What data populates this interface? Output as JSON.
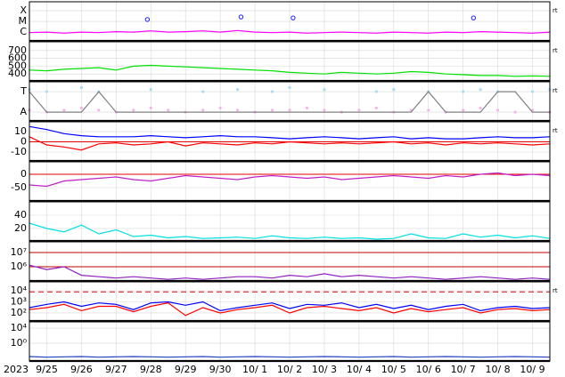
{
  "chart_data": [
    {
      "type": "line",
      "log": true,
      "corner_label": "rt",
      "x": [
        0,
        0.5,
        1,
        1.5,
        2,
        2.5,
        3,
        3.5,
        4,
        4.5,
        5,
        5.5,
        6,
        6.5,
        7,
        7.5,
        8,
        8.5,
        9,
        9.5,
        10,
        10.5,
        11,
        11.5,
        12,
        12.5,
        13,
        13.5,
        14,
        14.5,
        15
      ],
      "xlim": [
        0,
        15
      ],
      "ylim": [
        1.5e-07,
        0.00068
      ],
      "yticks": [
        {
          "value": 1e-06,
          "label": "C"
        },
        {
          "value": 1e-05,
          "label": "M"
        },
        {
          "value": 0.0001,
          "label": "X"
        }
      ],
      "series": [
        {
          "color": "#ff00ff",
          "values": [
            8.9e-07,
            1e-06,
            7.9e-07,
            1e-06,
            8.9e-07,
            1.1e-06,
            1e-06,
            1.3e-06,
            1e-06,
            1.1e-06,
            1.3e-06,
            1e-06,
            1.4e-06,
            1e-06,
            8.9e-07,
            1e-06,
            7.9e-07,
            8.9e-07,
            1e-06,
            8.9e-07,
            7.9e-07,
            1e-06,
            8.9e-07,
            7.9e-07,
            1e-06,
            8.9e-07,
            1.1e-06,
            1e-06,
            8.9e-07,
            7.9e-07,
            1e-06
          ]
        },
        {
          "color": "#2020ff",
          "marker": "circle",
          "x": [
            3.4,
            6.1,
            7.6,
            12.8
          ],
          "values": [
            1.5e-05,
            2.6e-05,
            2.1e-05,
            2.1e-05
          ]
        }
      ]
    },
    {
      "type": "line",
      "corner_label": "rt",
      "x": [
        0,
        0.5,
        1,
        1.5,
        2,
        2.5,
        3,
        3.5,
        4,
        4.5,
        5,
        5.5,
        6,
        6.5,
        7,
        7.5,
        8,
        8.5,
        9,
        9.5,
        10,
        10.5,
        11,
        11.5,
        12,
        12.5,
        13,
        13.5,
        14,
        14.5,
        15
      ],
      "xlim": [
        0,
        15
      ],
      "ylim": [
        311,
        811
      ],
      "yticks": [
        400,
        500,
        600,
        700
      ],
      "series": [
        {
          "color": "#00e000",
          "values": [
            450,
            440,
            460,
            470,
            480,
            450,
            500,
            510,
            500,
            490,
            480,
            470,
            460,
            450,
            440,
            420,
            410,
            400,
            420,
            410,
            400,
            410,
            430,
            420,
            400,
            390,
            380,
            380,
            370,
            375,
            370
          ]
        }
      ]
    },
    {
      "type": "line",
      "corner_label": "rt",
      "x": [
        0,
        0.5,
        1,
        1.5,
        2,
        2.5,
        3,
        3.5,
        4,
        4.5,
        5,
        5.5,
        6,
        6.5,
        7,
        7.5,
        8,
        8.5,
        9,
        9.5,
        10,
        10.5,
        11,
        11.5,
        12,
        12.5,
        13,
        13.5,
        14,
        14.5,
        15
      ],
      "xlim": [
        0,
        15
      ],
      "ylim": [
        -0.43,
        1.48
      ],
      "yticks": [
        {
          "value": 0,
          "label": "A"
        },
        {
          "value": 1,
          "label": "T"
        }
      ],
      "series": [
        {
          "color": "#a8dcf4",
          "marker": "dot",
          "values": [
            1.1,
            1.0,
            null,
            1.2,
            1.0,
            null,
            null,
            1.1,
            null,
            null,
            1.0,
            null,
            1.1,
            null,
            1.0,
            1.2,
            null,
            1.1,
            null,
            null,
            1.0,
            1.1,
            null,
            1.0,
            null,
            1.0,
            1.1,
            1.0,
            null,
            1.0,
            1.1
          ]
        },
        {
          "color": "#f4b4ec",
          "marker": "dot",
          "values": [
            0.1,
            0.0,
            0.1,
            0.2,
            0.1,
            0.0,
            0.1,
            0.2,
            0.1,
            0.0,
            0.1,
            0.2,
            0.1,
            0.0,
            0.1,
            0.1,
            0.2,
            0.1,
            0.0,
            0.1,
            0.2,
            0.0,
            0.1,
            0.1,
            0.0,
            0.1,
            0.2,
            0.1,
            0.0,
            0.1,
            0.0
          ]
        },
        {
          "color": "#808080",
          "values": [
            1,
            0,
            0,
            0,
            1,
            0,
            0,
            0,
            0,
            0,
            0,
            0,
            0,
            0,
            0,
            0,
            0,
            0,
            0,
            0,
            0,
            0,
            0,
            1,
            0,
            0,
            0,
            1,
            1,
            0,
            0
          ]
        }
      ]
    },
    {
      "type": "line",
      "corner_label": "rt",
      "x": [
        0,
        0.5,
        1,
        1.5,
        2,
        2.5,
        3,
        3.5,
        4,
        4.5,
        5,
        5.5,
        6,
        6.5,
        7,
        7.5,
        8,
        8.5,
        9,
        9.5,
        10,
        10.5,
        11,
        11.5,
        12,
        12.5,
        13,
        13.5,
        14,
        14.5,
        15
      ],
      "xlim": [
        0,
        15
      ],
      "ylim": [
        -18.7,
        19.6
      ],
      "yticks": [
        10,
        0,
        -10
      ],
      "hlines": [
        {
          "value": 0,
          "color": "#e00000"
        }
      ],
      "series": [
        {
          "color": "#0000ff",
          "values": [
            15,
            12,
            8,
            6,
            5,
            5,
            5,
            6,
            5,
            4,
            5,
            6,
            5,
            5,
            4,
            3,
            4,
            5,
            4,
            3,
            4,
            5,
            3,
            4,
            3,
            3,
            4,
            5,
            4,
            4,
            5
          ]
        },
        {
          "color": "#ff0000",
          "values": [
            5,
            -3,
            -5,
            -8,
            -2,
            -1,
            -3,
            -2,
            0,
            -4,
            -1,
            -2,
            -3,
            -1,
            -2,
            0,
            -1,
            -2,
            -1,
            -2,
            -1,
            0,
            -2,
            -1,
            -3,
            -1,
            -2,
            -1,
            -2,
            -3,
            -2
          ]
        }
      ]
    },
    {
      "type": "line",
      "x": [
        0,
        0.5,
        1,
        1.5,
        2,
        2.5,
        3,
        3.5,
        4,
        4.5,
        5,
        5.5,
        6,
        6.5,
        7,
        7.5,
        8,
        8.5,
        9,
        9.5,
        10,
        10.5,
        11,
        11.5,
        12,
        12.5,
        13,
        13.5,
        14,
        14.5,
        15
      ],
      "xlim": [
        0,
        15
      ],
      "ylim": [
        -100,
        46.7
      ],
      "yticks": [
        0,
        -50
      ],
      "hlines": [
        {
          "value": 0,
          "color": "#e00000"
        }
      ],
      "series": [
        {
          "color": "#c020c8",
          "values": [
            -40,
            -45,
            -25,
            -20,
            -15,
            -10,
            -20,
            -25,
            -15,
            -5,
            -10,
            -15,
            -20,
            -10,
            -5,
            -10,
            -15,
            -10,
            -20,
            -15,
            -10,
            -5,
            -10,
            -15,
            -5,
            -10,
            0,
            5,
            -5,
            0,
            -5
          ]
        }
      ]
    },
    {
      "type": "line",
      "x": [
        0,
        0.5,
        1,
        1.5,
        2,
        2.5,
        3,
        3.5,
        4,
        4.5,
        5,
        5.5,
        6,
        6.5,
        7,
        7.5,
        8,
        8.5,
        9,
        9.5,
        10,
        10.5,
        11,
        11.5,
        12,
        12.5,
        13,
        13.5,
        14,
        14.5,
        15
      ],
      "xlim": [
        0,
        15
      ],
      "ylim": [
        1.3,
        60
      ],
      "yticks": [
        40,
        20
      ],
      "series": [
        {
          "color": "#00e0e0",
          "values": [
            28,
            20,
            15,
            25,
            12,
            18,
            8,
            10,
            6,
            8,
            5,
            6,
            7,
            5,
            9,
            6,
            5,
            7,
            5,
            6,
            4,
            5,
            12,
            6,
            5,
            12,
            7,
            10,
            6,
            9,
            5
          ]
        }
      ]
    },
    {
      "type": "line",
      "log": true,
      "x": [
        0,
        0.5,
        1,
        1.5,
        2,
        2.5,
        3,
        3.5,
        4,
        4.5,
        5,
        5.5,
        6,
        6.5,
        7,
        7.5,
        8,
        8.5,
        9,
        9.5,
        10,
        10.5,
        11,
        11.5,
        12,
        12.5,
        13,
        13.5,
        14,
        14.5,
        15
      ],
      "xlim": [
        0,
        15
      ],
      "ylim": [
        100000,
        56000000
      ],
      "yticks": [
        {
          "value": 10000000,
          "label": "10⁷"
        },
        {
          "value": 1000000,
          "label": "10⁶"
        }
      ],
      "hlines": [
        {
          "value": 10000000,
          "color": "#c00000"
        },
        {
          "value": 1000000,
          "color": "#c00000"
        }
      ],
      "series": [
        {
          "color": "#9020c0",
          "values": [
            1300000,
            630000,
            1000000,
            250000,
            200000,
            160000,
            200000,
            160000,
            130000,
            160000,
            130000,
            160000,
            200000,
            200000,
            160000,
            250000,
            200000,
            320000,
            200000,
            250000,
            200000,
            160000,
            200000,
            160000,
            130000,
            160000,
            200000,
            160000,
            130000,
            160000,
            130000
          ]
        }
      ]
    },
    {
      "type": "line",
      "log": true,
      "corner_label": "rt",
      "x": [
        0,
        0.5,
        1,
        1.5,
        2,
        2.5,
        3,
        3.5,
        4,
        4.5,
        5,
        5.5,
        6,
        6.5,
        7,
        7.5,
        8,
        8.5,
        9,
        9.5,
        10,
        10.5,
        11,
        11.5,
        12,
        12.5,
        13,
        13.5,
        14,
        14.5,
        15
      ],
      "xlim": [
        0,
        15
      ],
      "ylim": [
        19,
        63000
      ],
      "yticks": [
        {
          "value": 10000,
          "label": "10⁴"
        },
        {
          "value": 1000,
          "label": "10³"
        },
        {
          "value": 100,
          "label": "10²"
        }
      ],
      "hlines": [
        {
          "value": 8000,
          "color": "#e00000",
          "dashed": true
        }
      ],
      "series": [
        {
          "color": "#0000ff",
          "values": [
            300,
            600,
            1000,
            400,
            800,
            600,
            200,
            800,
            1000,
            500,
            1000,
            160,
            300,
            500,
            800,
            250,
            600,
            500,
            800,
            300,
            600,
            250,
            500,
            200,
            400,
            600,
            160,
            300,
            400,
            250,
            300
          ]
        },
        {
          "color": "#ff0000",
          "values": [
            200,
            300,
            600,
            160,
            400,
            400,
            130,
            400,
            800,
            60,
            300,
            100,
            200,
            300,
            500,
            100,
            300,
            400,
            250,
            160,
            300,
            100,
            250,
            130,
            200,
            300,
            100,
            200,
            250,
            160,
            200
          ]
        }
      ]
    },
    {
      "type": "line",
      "log": true,
      "year": "2023",
      "x": [
        0,
        0.5,
        1,
        1.5,
        2,
        2.5,
        3,
        3.5,
        4,
        4.5,
        5,
        5.5,
        6,
        6.5,
        7,
        7.5,
        8,
        8.5,
        9,
        9.5,
        10,
        10.5,
        11,
        11.5,
        12,
        12.5,
        13,
        13.5,
        14,
        14.5,
        15
      ],
      "xlim": [
        0,
        15
      ],
      "ylim": [
        2e-05,
        450000
      ],
      "yticks": [
        {
          "value": 10000,
          "label": "10⁴"
        },
        {
          "value": 1,
          "label": "10⁰"
        }
      ],
      "xticks": [
        {
          "value": 0.5,
          "label": "9/25"
        },
        {
          "value": 1.5,
          "label": "9/26"
        },
        {
          "value": 2.5,
          "label": "9/27"
        },
        {
          "value": 3.5,
          "label": "9/28"
        },
        {
          "value": 4.5,
          "label": "9/29"
        },
        {
          "value": 5.5,
          "label": "9/30"
        },
        {
          "value": 6.5,
          "label": "10/ 1"
        },
        {
          "value": 7.5,
          "label": "10/ 2"
        },
        {
          "value": 8.5,
          "label": "10/ 3"
        },
        {
          "value": 9.5,
          "label": "10/ 4"
        },
        {
          "value": 10.5,
          "label": "10/ 5"
        },
        {
          "value": 11.5,
          "label": "10/ 6"
        },
        {
          "value": 12.5,
          "label": "10/ 7"
        },
        {
          "value": 13.5,
          "label": "10/ 8"
        },
        {
          "value": 14.5,
          "label": "10/ 9"
        }
      ],
      "series": [
        {
          "color": "#2040c0",
          "values": [
            0.0003,
            0.0002,
            0.00025,
            0.0003,
            0.0002,
            0.00025,
            0.0003,
            0.00025,
            0.0002,
            0.00025,
            0.0003,
            0.0002,
            0.00025,
            0.0003,
            0.00025,
            0.0002,
            0.00025,
            0.0003,
            0.00025,
            0.0002,
            0.00025,
            0.0003,
            0.0002,
            0.00025,
            0.0003,
            0.00025,
            0.0002,
            0.00025,
            0.0003,
            0.00025,
            0.0002
          ]
        }
      ]
    }
  ]
}
